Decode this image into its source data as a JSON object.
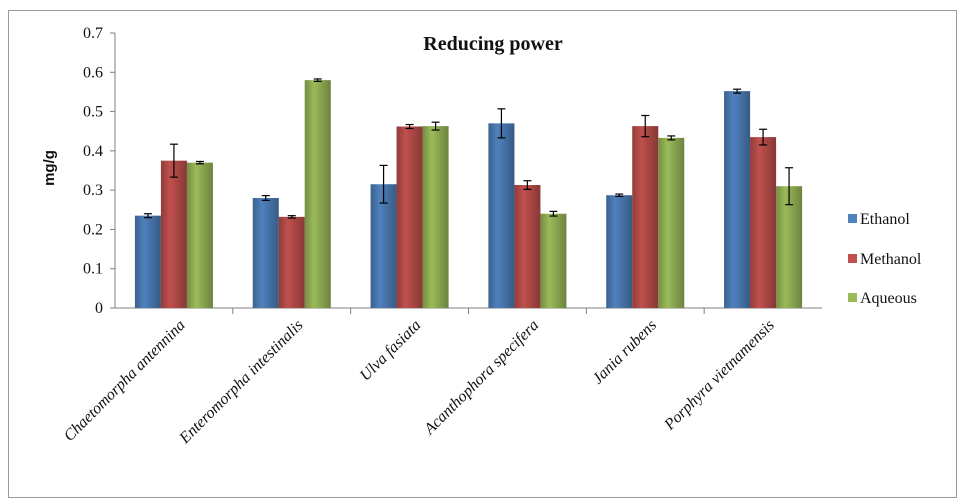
{
  "chart_data": {
    "type": "bar",
    "title": "Reducing power",
    "ylabel": "mg/g",
    "xlabel": "",
    "ylim": [
      0,
      0.7
    ],
    "yticks": [
      "0",
      "0.1",
      "0.2",
      "0.3",
      "0.4",
      "0.5",
      "0.6",
      "0.7"
    ],
    "grid": false,
    "legend_position": "right",
    "categories": [
      "Chaetomorpha antennina",
      "Enteromorpha intestinalis",
      "Ulva fasiata",
      "Acanthophora specifera",
      "Jania rubens",
      "Porphyra vietnamensis"
    ],
    "series": [
      {
        "name": "Ethanol",
        "color": "#4f81bd",
        "values": [
          0.235,
          0.28,
          0.315,
          0.47,
          0.287,
          0.552
        ],
        "errors": [
          0.005,
          0.006,
          0.048,
          0.037,
          0.003,
          0.005
        ]
      },
      {
        "name": "Methanol",
        "color": "#c0504d",
        "values": [
          0.375,
          0.232,
          0.462,
          0.313,
          0.463,
          0.435
        ],
        "errors": [
          0.042,
          0.003,
          0.005,
          0.011,
          0.027,
          0.02
        ]
      },
      {
        "name": "Aqueous",
        "color": "#9bbb59",
        "values": [
          0.37,
          0.58,
          0.463,
          0.24,
          0.433,
          0.31
        ],
        "errors": [
          0.003,
          0.003,
          0.01,
          0.006,
          0.005,
          0.047
        ]
      }
    ]
  }
}
